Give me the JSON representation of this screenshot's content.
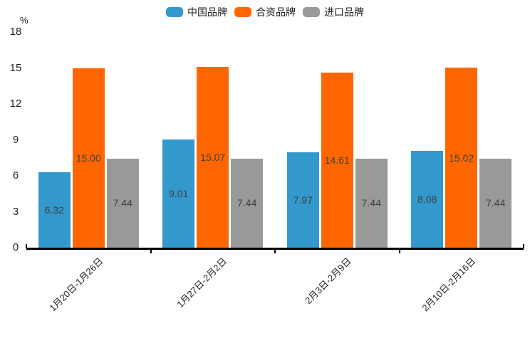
{
  "chart_data": {
    "type": "bar",
    "title": "",
    "categories": [
      "1月20日-1月26日",
      "1月27日-2月2日",
      "2月3日-2月9日",
      "2月10日-2月16日"
    ],
    "series": [
      {
        "name": "中国品牌",
        "color": "#3398CC",
        "values": [
          6.32,
          9.01,
          7.97,
          8.08
        ],
        "value_labels": [
          "6.32",
          "9.01",
          "7.97",
          "8.08"
        ]
      },
      {
        "name": "合资品牌",
        "color": "#FF6600",
        "values": [
          15.0,
          15.07,
          14.61,
          15.02
        ],
        "value_labels": [
          "15.00",
          "15.07",
          "14.61",
          "15.02"
        ]
      },
      {
        "name": "进口品牌",
        "color": "#999999",
        "values": [
          7.44,
          7.44,
          7.44,
          7.44
        ],
        "value_labels": [
          "7.44",
          "7.44",
          "7.44",
          "7.44"
        ]
      }
    ],
    "xlabel": "",
    "ylabel": "%",
    "y_ticks": [
      0,
      3,
      6,
      9,
      12,
      15,
      18
    ],
    "ylim": [
      0,
      18
    ],
    "grid": false,
    "legend_position": "top",
    "value_labels_shown": true,
    "x_tick_rotation_deg": 45,
    "colors": {
      "axis": "#000000",
      "tick_text": "#222222",
      "value_label_text": "#404040",
      "background": "#ffffff"
    }
  }
}
